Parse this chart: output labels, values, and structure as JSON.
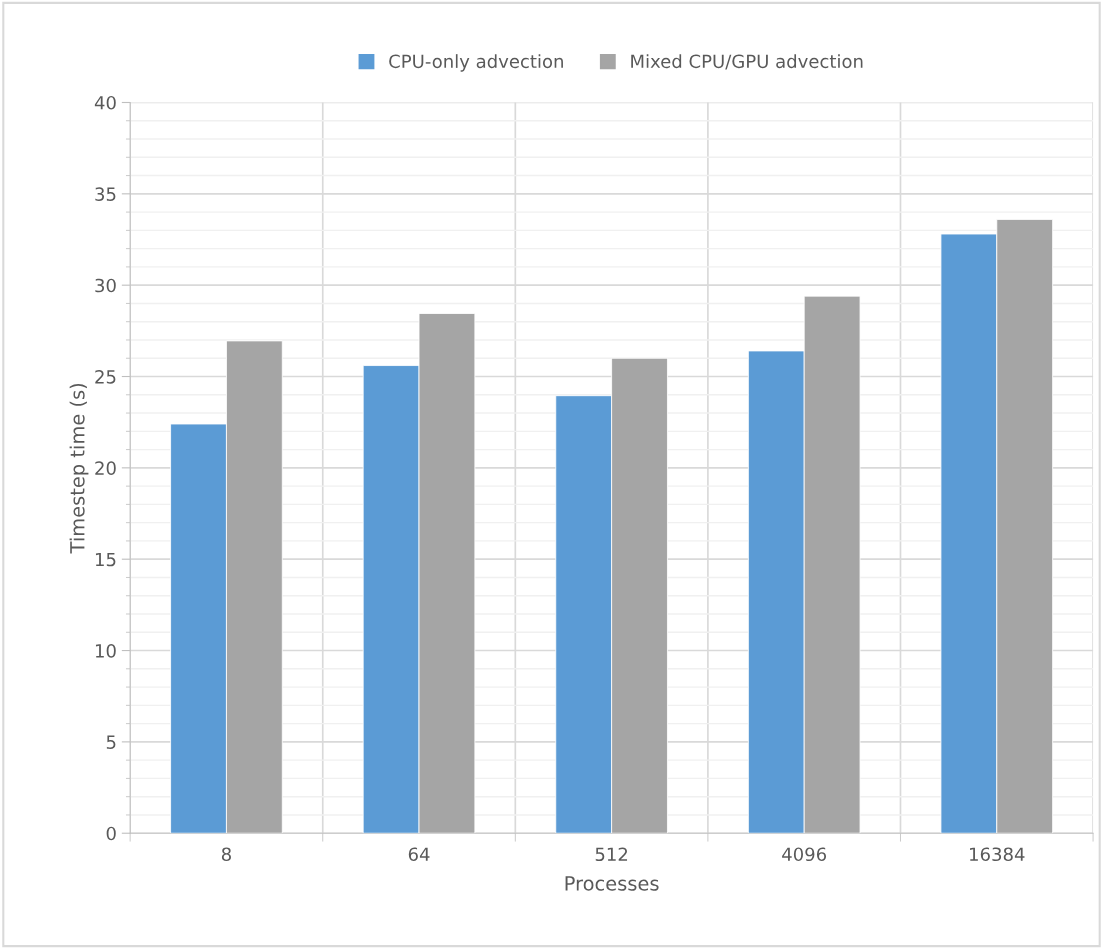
{
  "chart_data": {
    "type": "bar",
    "xlabel": "Processes",
    "ylabel": "Timestep time (s)",
    "categories": [
      "8",
      "64",
      "512",
      "4096",
      "16384"
    ],
    "series": [
      {
        "name": "CPU-only advection",
        "color": "#5b9bd5",
        "values": [
          22.4,
          25.6,
          23.95,
          26.4,
          32.8
        ]
      },
      {
        "name": "Mixed CPU/GPU advection",
        "color": "#a5a5a5",
        "values": [
          26.95,
          28.45,
          26.0,
          29.4,
          33.6
        ]
      }
    ],
    "ylim": [
      0,
      40
    ],
    "yticks": [
      0,
      5,
      10,
      15,
      20,
      25,
      30,
      35,
      40
    ],
    "grid": true,
    "legend": "top"
  }
}
